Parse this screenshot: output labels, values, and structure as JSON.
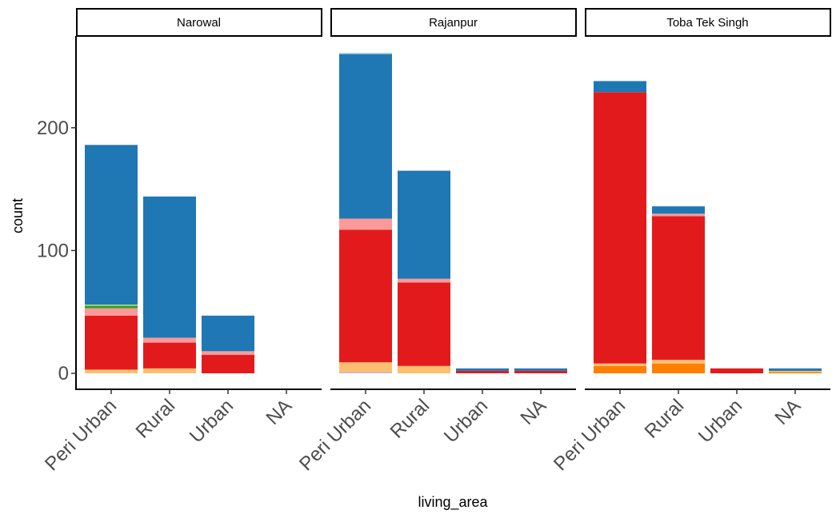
{
  "chart_data": {
    "type": "bar",
    "stacked": true,
    "faceted": true,
    "xlabel": "living_area",
    "ylabel": "count",
    "ylim": [
      0,
      272
    ],
    "y_ticks": [
      0,
      100,
      200
    ],
    "y_tick_labels": [
      "0",
      "100",
      "200"
    ],
    "categories": [
      "Peri Urban",
      "Rural",
      "Urban",
      "NA"
    ],
    "legend": "none",
    "grid": false,
    "panels": [
      {
        "name": "Narowal",
        "bars": [
          {
            "category": "Peri Urban",
            "segments": [
              {
                "color": "#fdbf6f",
                "value": 3
              },
              {
                "color": "#e31a1c",
                "value": 44
              },
              {
                "color": "#fb9a99",
                "value": 6
              },
              {
                "color": "#33a02c",
                "value": 2
              },
              {
                "color": "#b2df8a",
                "value": 1
              },
              {
                "color": "#1f78b4",
                "value": 130
              }
            ]
          },
          {
            "category": "Rural",
            "segments": [
              {
                "color": "#fdbf6f",
                "value": 4
              },
              {
                "color": "#e31a1c",
                "value": 21
              },
              {
                "color": "#fb9a99",
                "value": 4
              },
              {
                "color": "#1f78b4",
                "value": 115
              }
            ]
          },
          {
            "category": "Urban",
            "segments": [
              {
                "color": "#e31a1c",
                "value": 15
              },
              {
                "color": "#fb9a99",
                "value": 3
              },
              {
                "color": "#1f78b4",
                "value": 29
              }
            ]
          },
          {
            "category": "NA",
            "segments": []
          }
        ]
      },
      {
        "name": "Rajanpur",
        "bars": [
          {
            "category": "Peri Urban",
            "segments": [
              {
                "color": "#cab2d6",
                "value": 1
              },
              {
                "color": "#fdbf6f",
                "value": 8
              },
              {
                "color": "#e31a1c",
                "value": 108
              },
              {
                "color": "#fb9a99",
                "value": 9
              },
              {
                "color": "#1f78b4",
                "value": 134
              },
              {
                "color": "#a6cee3",
                "value": 1
              }
            ]
          },
          {
            "category": "Rural",
            "segments": [
              {
                "color": "#fdbf6f",
                "value": 6
              },
              {
                "color": "#e31a1c",
                "value": 68
              },
              {
                "color": "#fb9a99",
                "value": 3
              },
              {
                "color": "#1f78b4",
                "value": 88
              }
            ]
          },
          {
            "category": "Urban",
            "segments": [
              {
                "color": "#e31a1c",
                "value": 2
              },
              {
                "color": "#1f78b4",
                "value": 2
              }
            ]
          },
          {
            "category": "NA",
            "segments": [
              {
                "color": "#e31a1c",
                "value": 2
              },
              {
                "color": "#1f78b4",
                "value": 2
              }
            ]
          }
        ]
      },
      {
        "name": "Toba Tek Singh",
        "bars": [
          {
            "category": "Peri Urban",
            "segments": [
              {
                "color": "#ff7f00",
                "value": 6
              },
              {
                "color": "#fdbf6f",
                "value": 2
              },
              {
                "color": "#e31a1c",
                "value": 221
              },
              {
                "color": "#1f78b4",
                "value": 9
              }
            ]
          },
          {
            "category": "Rural",
            "segments": [
              {
                "color": "#ff7f00",
                "value": 8
              },
              {
                "color": "#fdbf6f",
                "value": 3
              },
              {
                "color": "#e31a1c",
                "value": 117
              },
              {
                "color": "#fb9a99",
                "value": 2
              },
              {
                "color": "#1f78b4",
                "value": 6
              }
            ]
          },
          {
            "category": "Urban",
            "segments": [
              {
                "color": "#e31a1c",
                "value": 4
              }
            ]
          },
          {
            "category": "NA",
            "segments": [
              {
                "color": "#ff7f00",
                "value": 1
              },
              {
                "color": "#fdbf6f",
                "value": 1
              },
              {
                "color": "#1f78b4",
                "value": 2
              }
            ]
          }
        ]
      }
    ]
  }
}
